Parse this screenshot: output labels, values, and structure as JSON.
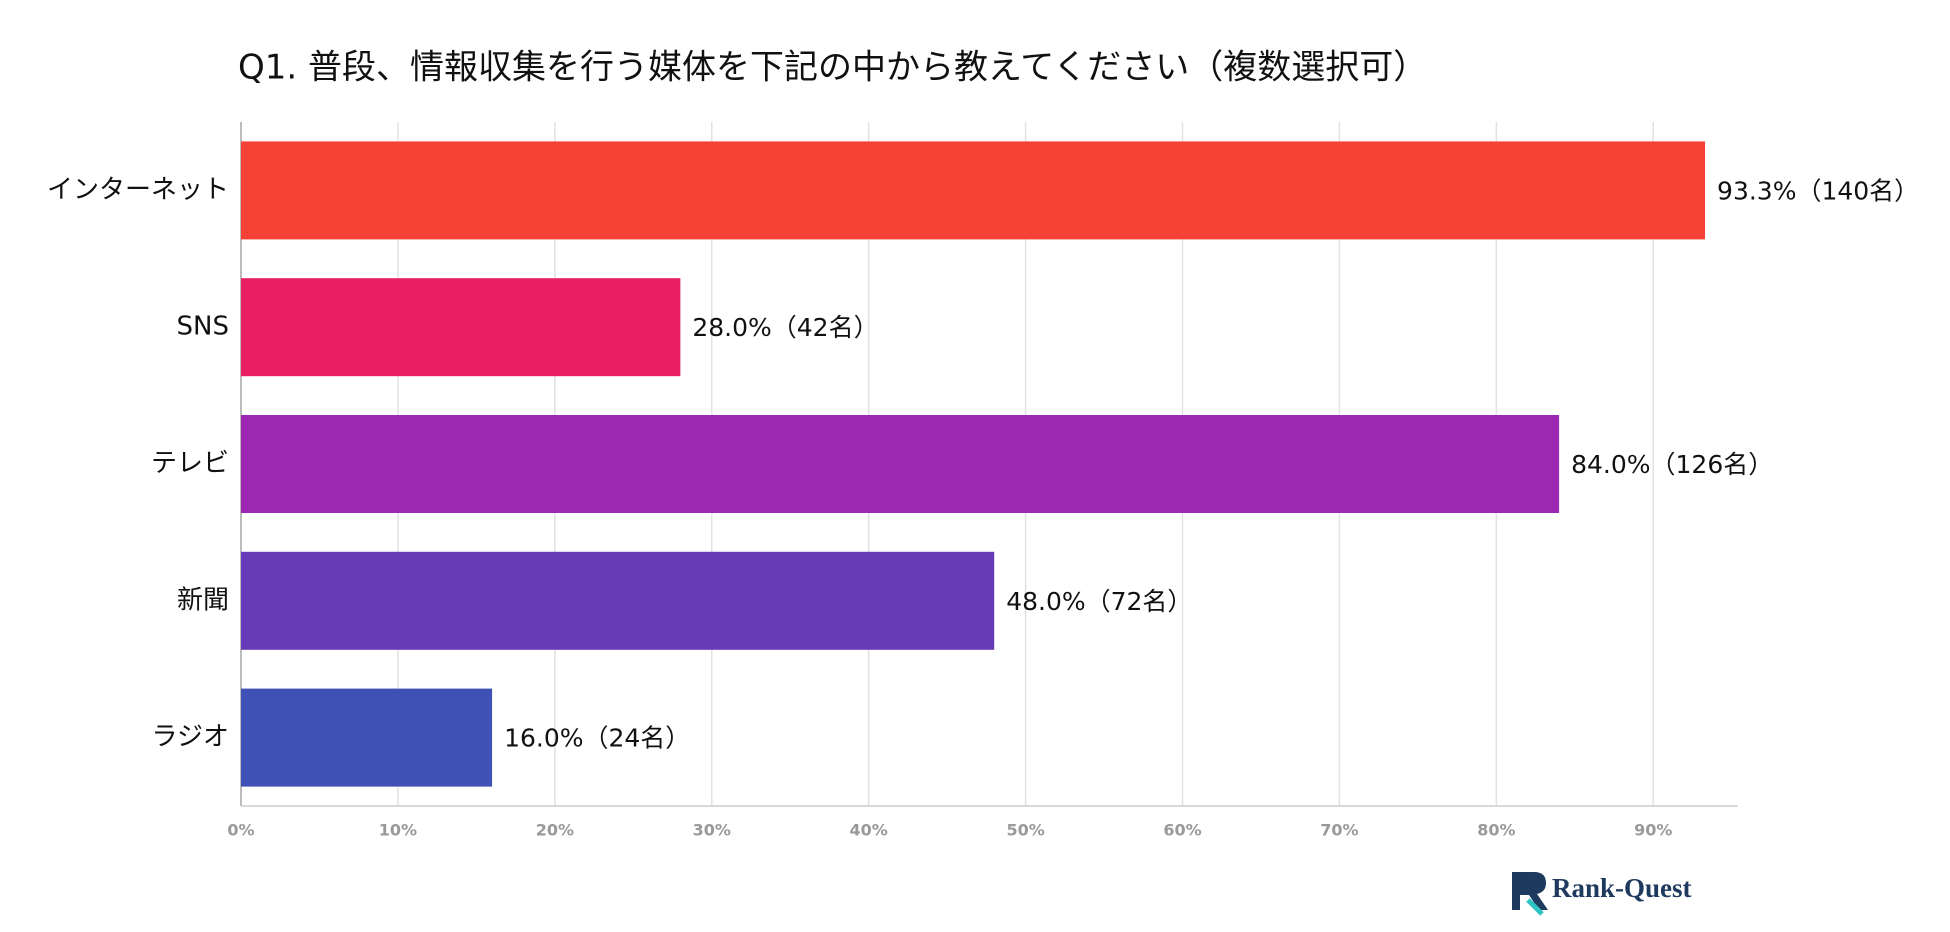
{
  "chart_data": {
    "type": "bar",
    "orientation": "horizontal",
    "title": "Q1. 普段、情報収集を行う媒体を下記の中から教えてください（複数選択可）",
    "categories": [
      "インターネット",
      "SNS",
      "テレビ",
      "新聞",
      "ラジオ"
    ],
    "values": [
      93.3,
      28.0,
      84.0,
      48.0,
      16.0
    ],
    "value_labels": [
      "93.3%（140名）",
      "28.0%（42名）",
      "84.0%（126名）",
      "48.0%（72名）",
      "16.0%（24名）"
    ],
    "colors": [
      "#f44336",
      "#e91e63",
      "#9c27b0",
      "#673ab7",
      "#3f51b5"
    ],
    "xlim": [
      0,
      95.4
    ],
    "xticks": [
      {
        "value": 0,
        "label": "0%"
      },
      {
        "value": 10,
        "label": "10%"
      },
      {
        "value": 20,
        "label": "20%"
      },
      {
        "value": 30,
        "label": "30%"
      },
      {
        "value": 40,
        "label": "40%"
      },
      {
        "value": 50,
        "label": "50%"
      },
      {
        "value": 60,
        "label": "60%"
      },
      {
        "value": 70,
        "label": "70%"
      },
      {
        "value": 80,
        "label": "80%"
      },
      {
        "value": 90,
        "label": "90%"
      }
    ],
    "grid": true
  },
  "brand": "Rank-Quest"
}
